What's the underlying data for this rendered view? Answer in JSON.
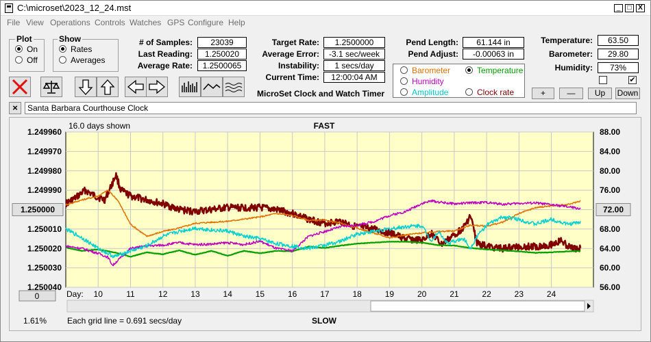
{
  "window": {
    "title": "C:\\microset\\2023_12_24.mst"
  },
  "titlebar_buttons": {
    "minimize": "_",
    "maximize": "□",
    "close": "X"
  },
  "menu": [
    "File",
    "View",
    "Operations",
    "Controls",
    "Watches",
    "GPS",
    "Configure",
    "Help"
  ],
  "plot_group": {
    "title": "Plot",
    "on": "On",
    "off": "Off",
    "selected": "On"
  },
  "show_group": {
    "title": "Show",
    "rates": "Rates",
    "averages": "Averages",
    "selected": "Rates"
  },
  "stats": {
    "samples_label": "# of Samples:",
    "samples": "23039",
    "last_reading_label": "Last Reading:",
    "last_reading": "1.250020",
    "average_rate_label": "Average Rate:",
    "average_rate": "1.2500065",
    "target_rate_label": "Target Rate:",
    "target_rate": "1.2500000",
    "average_error_label": "Average Error:",
    "average_error": "-3.1 sec/week",
    "instability_label": "Instability:",
    "instability": "1 secs/day",
    "current_time_label": "Current Time:",
    "current_time": "12:00:04 AM",
    "pend_length_label": "Pend Length:",
    "pend_length": "61.144 in",
    "pend_adjust_label": "Pend Adjust:",
    "pend_adjust": "-0.00063 in",
    "temperature_label": "Temperature:",
    "temperature": "63.50",
    "barometer_label": "Barometer:",
    "barometer": "29.80",
    "humidity_label": "Humidity:",
    "humidity": "73%"
  },
  "sensor_select": {
    "barometer": "Barometer",
    "temperature": "Temperature",
    "humidity": "Humidity",
    "amplitude": "Amplitude",
    "clock_rate": "Clock rate",
    "selected": "Temperature",
    "colors": {
      "barometer": "#e07000",
      "temperature": "#00a000",
      "humidity": "#c000c0",
      "amplitude": "#00c8c8",
      "clock_rate": "#800000"
    }
  },
  "scale_buttons": {
    "plus": "+",
    "minus": "—",
    "up": "Up",
    "down": "Down"
  },
  "clock_title": "MicroSet Clock and Watch Timer",
  "clock_name": "Santa Barbara Courthouse Clock",
  "chart_header": {
    "days_shown": "16.0 days shown",
    "fast": "FAST",
    "slow": "SLOW",
    "grid_note": "Each grid line = 0.691 secs/day",
    "percent": "1.61%",
    "center_left": "1.250000",
    "center_right": "72.00",
    "offset_button": "0"
  },
  "chart_data": {
    "type": "line",
    "xlabel": "Day:",
    "x_ticks": [
      10,
      11,
      12,
      13,
      14,
      15,
      16,
      17,
      18,
      19,
      20,
      21,
      22,
      23,
      24
    ],
    "xlim": [
      9,
      25.3
    ],
    "left_axis": {
      "ticks": [
        "1.249960",
        "1.249970",
        "1.249980",
        "1.249990",
        "1.250000",
        "1.250010",
        "1.250020",
        "1.250030",
        "1.250040"
      ],
      "ylim": [
        1.24996,
        1.25004
      ],
      "inverted": true
    },
    "right_axis": {
      "ticks": [
        "88.00",
        "84.00",
        "80.00",
        "76.00",
        "72.00",
        "68.00",
        "64.00",
        "60.00",
        "56.00"
      ],
      "ylim": [
        56,
        88
      ]
    },
    "grid": true,
    "background": "#ffffc8",
    "series": [
      {
        "key": "clock_rate",
        "color": "#800000",
        "width": 2.6,
        "axis": "left",
        "noise": 1.8e-06,
        "x": [
          9,
          9.3,
          9.6,
          9.9,
          10.2,
          10.4,
          10.55,
          10.7,
          11,
          11.5,
          12,
          12.5,
          13,
          13.5,
          14,
          14.5,
          15,
          15.5,
          16,
          16.5,
          17,
          17.5,
          18,
          18.5,
          19,
          19.5,
          20,
          20.3,
          20.6,
          21,
          21.3,
          21.5,
          21.7,
          22,
          22.5,
          23,
          23.5,
          24,
          24.3,
          24.6,
          24.9
        ],
        "y": [
          1.249997,
          1.249994,
          1.24999,
          1.249993,
          1.249995,
          1.249988,
          1.249982,
          1.24999,
          1.249993,
          1.249995,
          1.249997,
          1.25,
          1.250001,
          1.25,
          1.249999,
          1.249999,
          1.249999,
          1.25,
          1.250002,
          1.250005,
          1.250007,
          1.250006,
          1.250009,
          1.25001,
          1.250012,
          1.250015,
          1.250016,
          1.250012,
          1.250018,
          1.250013,
          1.250009,
          1.250003,
          1.250017,
          1.250019,
          1.25002,
          1.250019,
          1.250019,
          1.250018,
          1.250016,
          1.25002,
          1.25002
        ]
      },
      {
        "key": "barometer",
        "color": "#e07000",
        "width": 1.5,
        "axis": "right",
        "noise": 0.15,
        "x": [
          9,
          9.5,
          10,
          10.3,
          10.6,
          11,
          11.5,
          12,
          12.5,
          13,
          13.5,
          14,
          15,
          15.5,
          16,
          16.5,
          17,
          17.5,
          18,
          18.5,
          19,
          19.5,
          20,
          20.5,
          21,
          21.5,
          22,
          22.5,
          23,
          23.5,
          24,
          24.5,
          24.9
        ],
        "y": [
          73,
          74,
          74.8,
          76,
          74,
          69,
          66.5,
          67.5,
          68.2,
          69.2,
          69.4,
          69.6,
          70.5,
          71.2,
          70.8,
          69.8,
          69.8,
          69.2,
          68.2,
          67.2,
          66.2,
          66.8,
          67.2,
          67.5,
          67.6,
          68.8,
          68.6,
          69.4,
          71.2,
          72.4,
          72.8,
          73,
          73.8
        ]
      },
      {
        "key": "temperature",
        "color": "#00a000",
        "width": 2.2,
        "axis": "right",
        "noise": 0.05,
        "x": [
          9,
          9.5,
          10,
          10.5,
          11,
          11.5,
          12,
          12.5,
          13,
          13.5,
          14,
          14.5,
          15,
          15.5,
          16,
          16.5,
          17,
          17.5,
          18,
          18.5,
          19,
          19.5,
          20,
          20.5,
          21,
          21.5,
          22,
          22.5,
          23,
          23.5,
          24,
          24.5,
          24.9
        ],
        "y": [
          64.2,
          63.5,
          63.8,
          63.2,
          62.3,
          63.2,
          62.8,
          63.6,
          62.7,
          63.5,
          62.5,
          63.5,
          63,
          63.5,
          63.4,
          64.4,
          64.1,
          64.6,
          65,
          65.2,
          65.4,
          65.4,
          65.2,
          64.7,
          64.6,
          64.1,
          63.8,
          63.6,
          63.4,
          63.1,
          63.2,
          63.4,
          63.5
        ]
      },
      {
        "key": "humidity",
        "color": "#c000c0",
        "width": 1.5,
        "axis": "right",
        "noise": 0.25,
        "x": [
          9,
          9.5,
          10,
          10.3,
          10.45,
          10.6,
          11,
          11.5,
          12,
          12.5,
          13,
          13.5,
          14,
          14.5,
          15,
          15.5,
          16,
          16.5,
          17,
          17.5,
          18,
          18.5,
          19,
          19.5,
          20,
          20.3,
          20.5,
          21,
          21.5,
          22,
          22.5,
          23,
          23.5,
          24,
          24.5,
          24.9
        ],
        "y": [
          64.5,
          64,
          63,
          62.2,
          60.5,
          61.5,
          64,
          64.5,
          64.7,
          65.2,
          64.8,
          64.9,
          65.2,
          64.8,
          65.5,
          64,
          63.5,
          66.5,
          67.5,
          68.5,
          68.8,
          69.5,
          70.8,
          71.6,
          73.3,
          73.8,
          73.6,
          73.2,
          73.4,
          73.5,
          73.1,
          73.3,
          73.4,
          73,
          72.6,
          72.2
        ]
      },
      {
        "key": "amplitude",
        "color": "#00d0d0",
        "width": 1.5,
        "axis": "right",
        "noise": 0.4,
        "x": [
          9,
          9.5,
          10,
          10.5,
          11,
          11.5,
          12,
          12.5,
          13,
          13.5,
          14,
          14.5,
          15,
          15.5,
          16,
          16.5,
          17,
          17.5,
          18,
          18.5,
          19,
          19.5,
          20,
          20.3,
          20.5,
          20.8,
          21,
          21.3,
          21.5,
          21.7,
          22,
          22.5,
          23,
          23.5,
          24,
          24.5,
          24.9
        ],
        "y": [
          68,
          66.2,
          64,
          62.3,
          63.5,
          64.5,
          66.5,
          67.5,
          68.2,
          67.8,
          67.6,
          66.5,
          66,
          65,
          64.5,
          64,
          64.7,
          65.5,
          67,
          67.5,
          68,
          68.5,
          68.7,
          65.5,
          67.5,
          65,
          65.5,
          66,
          64,
          66.5,
          68.8,
          70.5,
          70,
          69,
          70,
          69,
          69.4
        ]
      }
    ]
  }
}
